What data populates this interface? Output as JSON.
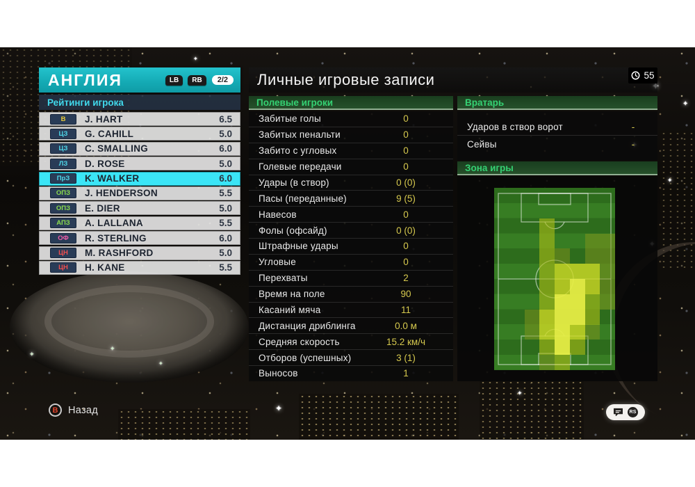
{
  "team_panel": {
    "title": "АНГЛИЯ",
    "lb_label": "LB",
    "rb_label": "RB",
    "page_indicator": "2/2",
    "ratings_header": "Рейтинги игрока",
    "position_colors": {
      "gk": "#e9cb3a",
      "def": "#4fd8ea",
      "mid": "#8bdc4e",
      "amf": "#ef5da8",
      "fwd": "#ef4f4f"
    },
    "players": [
      {
        "pos": "В",
        "pos_color": "#e9cb3a",
        "name": "J. HART",
        "rating": "6.5",
        "selected": false
      },
      {
        "pos": "ЦЗ",
        "pos_color": "#4fd8ea",
        "name": "G. CAHILL",
        "rating": "5.0",
        "selected": false
      },
      {
        "pos": "ЦЗ",
        "pos_color": "#4fd8ea",
        "name": "C. SMALLING",
        "rating": "6.0",
        "selected": false
      },
      {
        "pos": "ЛЗ",
        "pos_color": "#4fd8ea",
        "name": "D. ROSE",
        "rating": "5.0",
        "selected": false
      },
      {
        "pos": "ПрЗ",
        "pos_color": "#4fd8ea",
        "name": "K. WALKER",
        "rating": "6.0",
        "selected": true
      },
      {
        "pos": "ОПЗ",
        "pos_color": "#8bdc4e",
        "name": "J. HENDERSON",
        "rating": "5.5",
        "selected": false
      },
      {
        "pos": "ОПЗ",
        "pos_color": "#8bdc4e",
        "name": "E. DIER",
        "rating": "5.0",
        "selected": false
      },
      {
        "pos": "АПЗ",
        "pos_color": "#8bdc4e",
        "name": "A. LALLANA",
        "rating": "5.5",
        "selected": false
      },
      {
        "pos": "ОФ",
        "pos_color": "#ef5da8",
        "name": "R. STERLING",
        "rating": "6.0",
        "selected": false
      },
      {
        "pos": "ЦН",
        "pos_color": "#ef4f4f",
        "name": "M. RASHFORD",
        "rating": "5.0",
        "selected": false
      },
      {
        "pos": "ЦН",
        "pos_color": "#ef4f4f",
        "name": "H. KANE",
        "rating": "5.5",
        "selected": false
      }
    ]
  },
  "records": {
    "title": "Личные игровые записи",
    "clock_value": "55",
    "field_header": "Полевые игроки",
    "field_stats": [
      {
        "label": "Забитые голы",
        "value": "0"
      },
      {
        "label": "Забитых пенальти",
        "value": "0"
      },
      {
        "label": "Забито с угловых",
        "value": "0"
      },
      {
        "label": "Голевые передачи",
        "value": "0"
      },
      {
        "label": "Удары (в створ)",
        "value": "0 (0)"
      },
      {
        "label": "Пасы (переданные)",
        "value": "9 (5)"
      },
      {
        "label": "Навесов",
        "value": "0"
      },
      {
        "label": "Фолы (офсайд)",
        "value": "0 (0)"
      },
      {
        "label": "Штрафные удары",
        "value": "0"
      },
      {
        "label": "Угловые",
        "value": "0"
      },
      {
        "label": "Перехваты",
        "value": "2"
      },
      {
        "label": "Время на поле",
        "value": "90"
      },
      {
        "label": "Касаний мяча",
        "value": "11"
      },
      {
        "label": "Дистанция дриблинга",
        "value": "0.0 м"
      },
      {
        "label": "Средняя скорость",
        "value": "15.2 км/ч"
      },
      {
        "label": "Отборов (успешных)",
        "value": "3 (1)"
      },
      {
        "label": "Выносов",
        "value": "1"
      }
    ],
    "gk_header": "Вратарь",
    "gk_stats": [
      {
        "label": "Ударов в створ ворот",
        "value": "-"
      },
      {
        "label": "Сейвы",
        "value": "-"
      }
    ],
    "zone_header": "Зона игры",
    "heatmap": {
      "cols": 8,
      "rows": 12,
      "palette": {
        "0": "transparent",
        "1": "rgba(128,148,28,0.52)",
        "2": "rgba(168,188,22,0.62)",
        "3": "rgba(205,216,36,0.80)",
        "4": "rgba(230,237,68,0.95)"
      },
      "grid": [
        [
          0,
          0,
          0,
          0,
          0,
          0,
          0,
          0
        ],
        [
          0,
          0,
          0,
          0,
          0,
          0,
          0,
          0
        ],
        [
          0,
          0,
          0,
          2,
          0,
          0,
          0,
          0
        ],
        [
          0,
          0,
          0,
          2,
          0,
          0,
          1,
          1
        ],
        [
          0,
          0,
          0,
          2,
          1,
          0,
          1,
          1
        ],
        [
          0,
          0,
          0,
          2,
          3,
          3,
          3,
          1
        ],
        [
          0,
          0,
          0,
          2,
          3,
          4,
          3,
          1
        ],
        [
          0,
          0,
          0,
          2,
          4,
          4,
          2,
          1
        ],
        [
          0,
          0,
          1,
          3,
          4,
          4,
          2,
          0
        ],
        [
          0,
          0,
          1,
          3,
          4,
          3,
          1,
          0
        ],
        [
          0,
          0,
          0,
          2,
          4,
          2,
          0,
          0
        ],
        [
          0,
          0,
          0,
          1,
          2,
          0,
          0,
          0
        ]
      ]
    }
  },
  "footer": {
    "back_button": "B",
    "back_label": "Назад",
    "rs_label": "RS"
  }
}
